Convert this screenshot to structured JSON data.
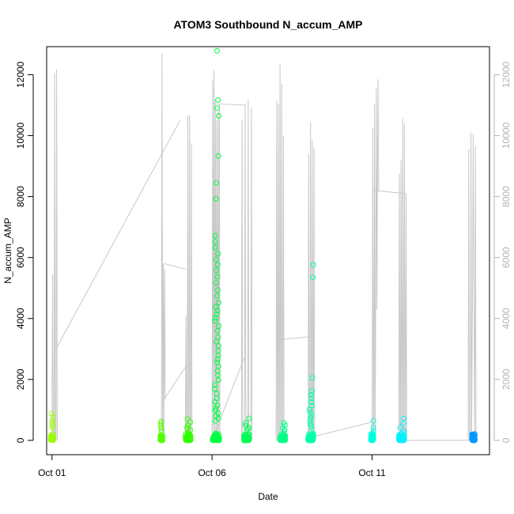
{
  "chart_data": {
    "type": "scatter",
    "title": "ATOM3 Southbound N_accum_AMP",
    "xlabel": "Date",
    "ylabel": "N_accum_AMP",
    "x_unit": "date",
    "xlim": [
      "2024-09-30T20:00",
      "2024-10-14T16:00"
    ],
    "ylim": [
      -470,
      12920
    ],
    "x_ticks": [
      {
        "value": "2024-10-01T00:00",
        "label": "Oct 01"
      },
      {
        "value": "2024-10-06T00:00",
        "label": "Oct 06"
      },
      {
        "value": "2024-10-11T00:00",
        "label": "Oct 11"
      }
    ],
    "y_ticks": [
      0,
      2000,
      4000,
      6000,
      8000,
      10000,
      12000
    ],
    "y_ticks_right": [
      0,
      2000,
      4000,
      6000,
      8000,
      10000,
      12000
    ],
    "grid": false,
    "legend": "none",
    "colors": {
      "overlay_line": "#c8c8c8",
      "axis": "#000000",
      "right_axis": "#b3b3b3"
    },
    "point_color_scale": [
      "#99ff00",
      "#33ff00",
      "#00ff33",
      "#00ffcc",
      "#00ffff",
      "#0099ff"
    ],
    "series": [
      {
        "kind": "points",
        "clusters": [
          {
            "x": "2024-10-01T00:00",
            "x_spread_h": 2,
            "n": 45,
            "y_high": [
              880,
              760,
              650,
              560,
              480,
              420
            ],
            "color": "#99ff00"
          },
          {
            "x": "2024-10-04T10:00",
            "x_spread_h": 2,
            "n": 40,
            "y_high": [
              620,
              560,
              480,
              400,
              320
            ],
            "color": "#55ff00"
          },
          {
            "x": "2024-10-05T06:00",
            "x_spread_h": 4,
            "n": 60,
            "y_high": [
              700,
              600,
              500,
              420,
              380,
              340
            ],
            "color": "#33ff00"
          },
          {
            "x": "2024-10-06T03:00",
            "x_spread_h": 5,
            "n": 70,
            "y_high": [
              12780,
              11170,
              10900,
              10650,
              9330,
              8450,
              7930,
              6720,
              6520,
              6330,
              6130,
              5940,
              5760,
              5580,
              5370,
              5170,
              4930,
              4740,
              4520,
              4380,
              4260,
              4140,
              4020,
              3920,
              3750,
              3590,
              3380,
              3240,
              3100,
              2940,
              2790,
              2660,
              2560,
              2430,
              2280,
              2140,
              1980,
              1820,
              1690,
              1530,
              1380,
              1260,
              1150,
              1060,
              980,
              890,
              800,
              720,
              640
            ],
            "color": "#00ff44"
          },
          {
            "x": "2024-10-07T02:00",
            "x_spread_h": 4,
            "n": 60,
            "y_high": [
              720,
              560,
              480,
              420,
              380,
              340
            ],
            "color": "#00ff55"
          },
          {
            "x": "2024-10-08T05:00",
            "x_spread_h": 4,
            "n": 55,
            "y_high": [
              580,
              500,
              420,
              360,
              300
            ],
            "color": "#00ff88"
          },
          {
            "x": "2024-10-09T02:00",
            "x_spread_h": 4,
            "n": 65,
            "y_high": [
              5760,
              5350,
              2050,
              1620,
              1500,
              1380,
              1260,
              1140,
              1020,
              920,
              830,
              740,
              650,
              560,
              480,
              410
            ],
            "color": "#00ffaa"
          },
          {
            "x": "2024-10-11T00:00",
            "x_spread_h": 2,
            "n": 40,
            "y_high": [
              640,
              420,
              300,
              220,
              160
            ],
            "color": "#00ffdd"
          },
          {
            "x": "2024-10-11T22:00",
            "x_spread_h": 4,
            "n": 60,
            "y_high": [
              720,
              560,
              420,
              320,
              250
            ],
            "color": "#00f0ff"
          },
          {
            "x": "2024-10-14T04:00",
            "x_spread_h": 2,
            "n": 55,
            "y_high": [
              140,
              110,
              90,
              70
            ],
            "color": "#0099ff"
          }
        ]
      },
      {
        "kind": "line",
        "color": "#c8c8c8",
        "bursts": [
          {
            "x": "2024-10-01T00:00",
            "x_end": "2024-10-01T03:00",
            "y_max": [
              5450,
              12050,
              12180
            ],
            "y_min": [
              0,
              0,
              0
            ]
          },
          {
            "x": "2024-10-04T10:00",
            "x_end": "2024-10-04T12:00",
            "y_max": [
              12700,
              5780,
              5620
            ],
            "y_min": [
              0,
              0,
              1350
            ]
          },
          {
            "x": "2024-10-05T04:00",
            "x_end": "2024-10-05T08:00",
            "y_max": [
              4100,
              10650,
              10680,
              9750
            ],
            "y_min": [
              0,
              0,
              0,
              0
            ]
          },
          {
            "x": "2024-10-06T00:00",
            "x_end": "2024-10-06T05:00",
            "y_max": [
              11850,
              12150,
              11200,
              10500,
              10800,
              11050
            ],
            "y_min": [
              0,
              0,
              0,
              0,
              0,
              0
            ]
          },
          {
            "x": "2024-10-06T22:00",
            "x_end": "2024-10-07T05:00",
            "y_max": [
              10500,
              11050,
              11200,
              10900
            ],
            "y_min": [
              0,
              0,
              0,
              0
            ]
          },
          {
            "x": "2024-10-08T00:00",
            "x_end": "2024-10-08T05:00",
            "y_max": [
              11150,
              11050,
              12350,
              11700,
              10000
            ],
            "y_min": [
              0,
              0,
              0,
              0,
              0
            ]
          },
          {
            "x": "2024-10-09T00:00",
            "x_end": "2024-10-09T04:00",
            "y_max": [
              9400,
              10450,
              9850,
              9600
            ],
            "y_min": [
              0,
              0,
              0,
              0
            ]
          },
          {
            "x": "2024-10-11T00:00",
            "x_end": "2024-10-11T04:00",
            "y_max": [
              10250,
              11050,
              11550,
              11850
            ],
            "y_min": [
              0,
              0,
              4300,
              8200
            ]
          },
          {
            "x": "2024-10-11T20:00",
            "x_end": "2024-10-12T01:00",
            "y_max": [
              8750,
              9200,
              10550,
              10400,
              8100
            ],
            "y_min": [
              0,
              0,
              0,
              0,
              0
            ]
          },
          {
            "x": "2024-10-14T00:00",
            "x_end": "2024-10-14T05:00",
            "y_max": [
              9550,
              10100,
              10050,
              9650
            ],
            "y_min": [
              0,
              0,
              5100,
              0
            ]
          }
        ],
        "connectors": [
          {
            "x": [
              "2024-10-01T03:00",
              "2024-10-05T00:00"
            ],
            "y": [
              3000,
              10500
            ]
          },
          {
            "x": [
              "2024-10-04T12:00",
              "2024-10-05T04:00"
            ],
            "y": [
              5800,
              5620
            ]
          },
          {
            "x": [
              "2024-10-04T12:00",
              "2024-10-05T04:00"
            ],
            "y": [
              1350,
              2400
            ]
          },
          {
            "x": [
              "2024-10-06T00:00",
              "2024-10-07T00:00"
            ],
            "y": [
              0,
              2700
            ]
          },
          {
            "x": [
              "2024-10-06T00:00",
              "2024-10-07T01:00"
            ],
            "y": [
              11050,
              11000
            ]
          },
          {
            "x": [
              "2024-10-08T00:00",
              "2024-10-09T01:00"
            ],
            "y": [
              3300,
              3400
            ]
          },
          {
            "x": [
              "2024-10-09T02:00",
              "2024-10-11T00:00"
            ],
            "y": [
              100,
              600
            ]
          },
          {
            "x": [
              "2024-10-11T01:00",
              "2024-10-12T01:00"
            ],
            "y": [
              8200,
              8100
            ]
          },
          {
            "x": [
              "2024-10-12T00:00",
              "2024-10-14T01:00"
            ],
            "y": [
              0,
              0
            ]
          }
        ]
      }
    ]
  }
}
